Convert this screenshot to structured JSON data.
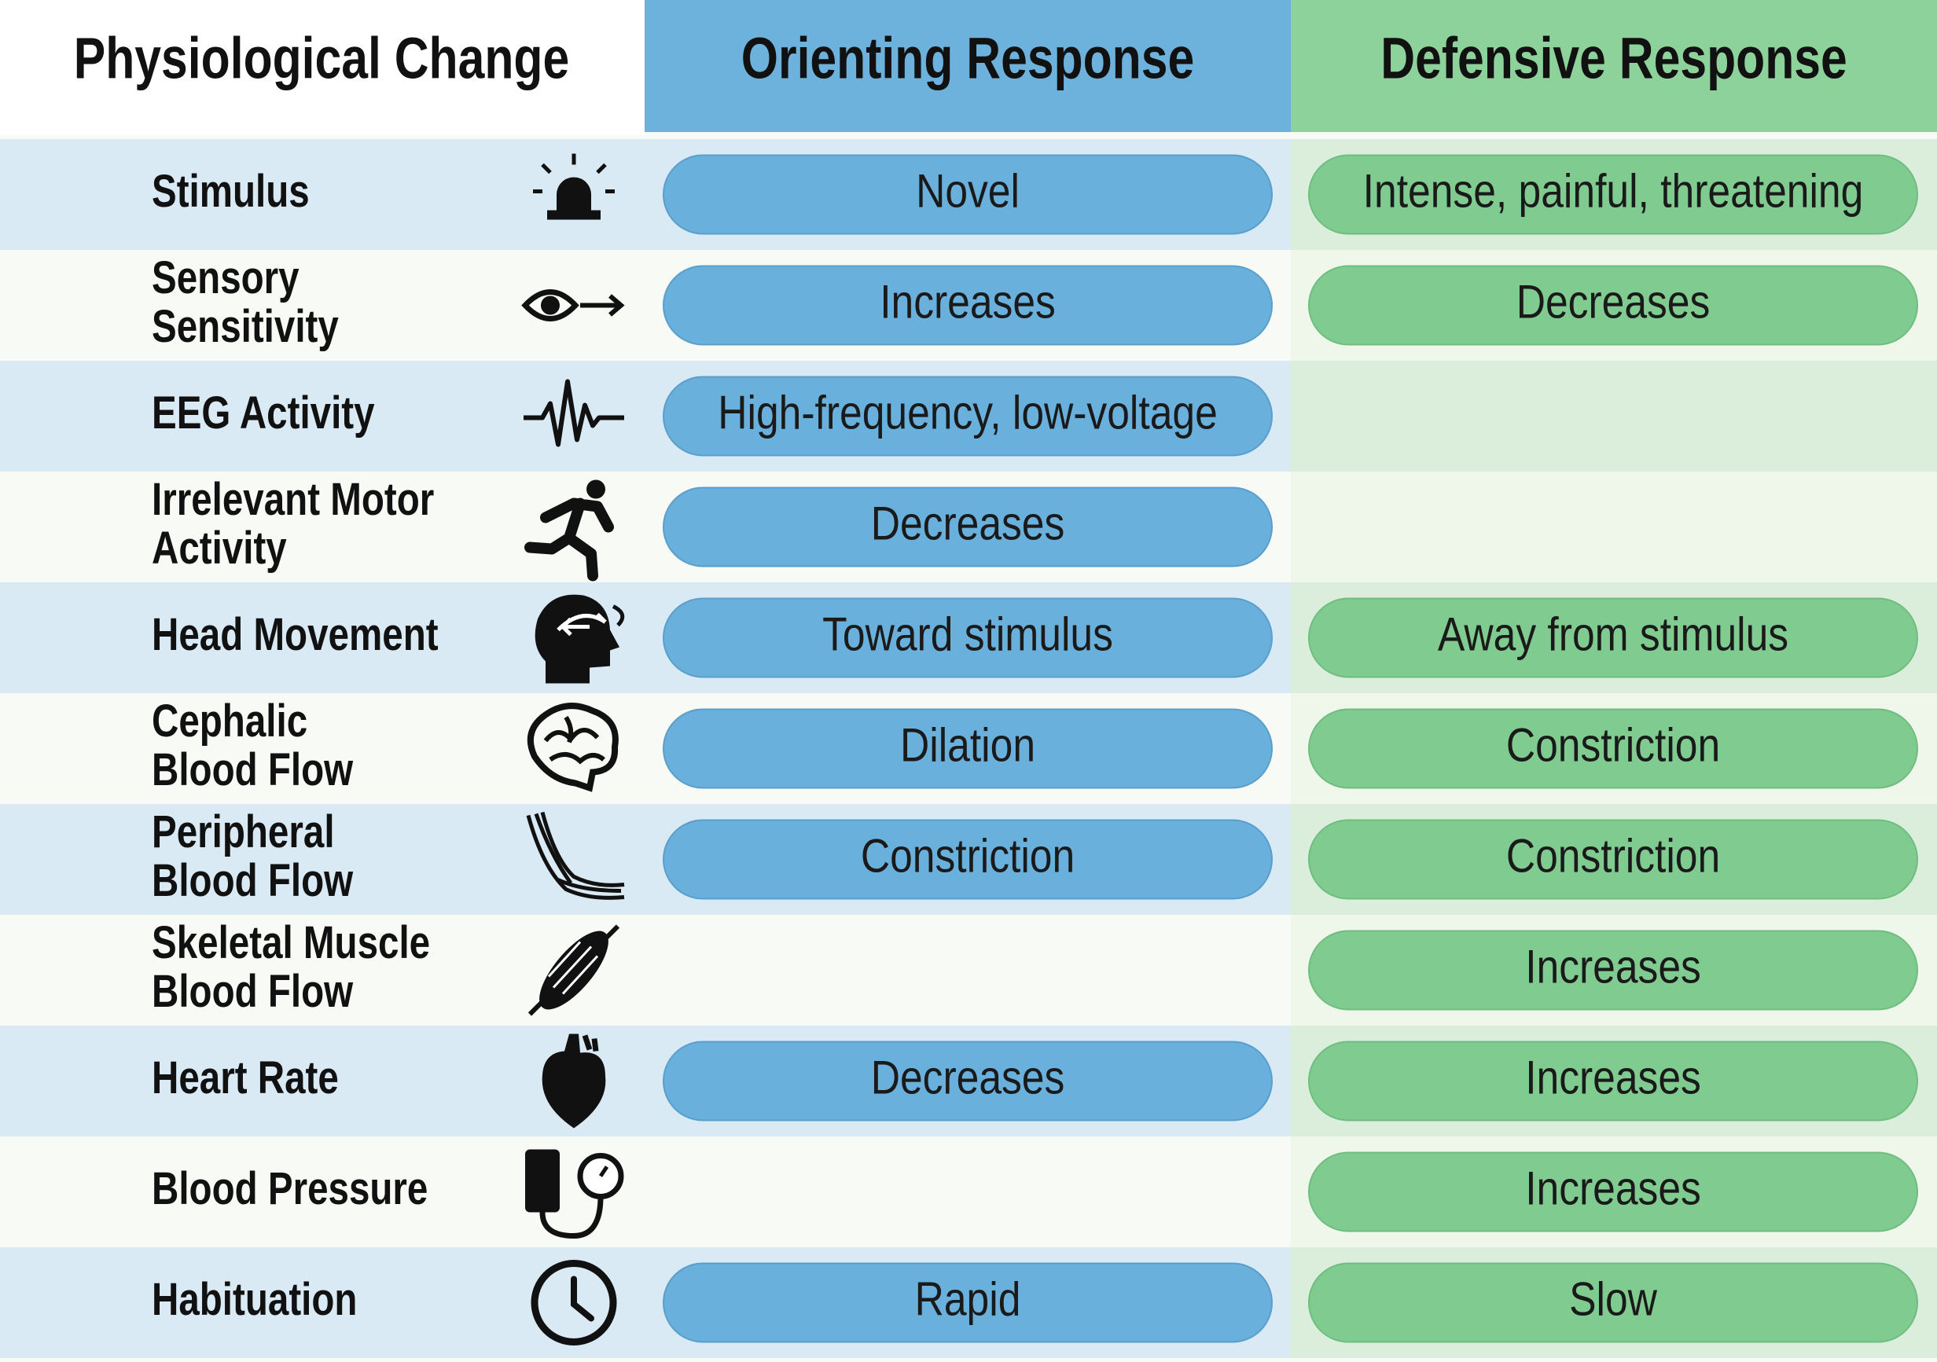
{
  "header": {
    "columns": [
      "Physiological Change",
      "Orienting Response",
      "Defensive Response"
    ]
  },
  "rows": [
    {
      "label": [
        "Stimulus"
      ],
      "orienting": "Novel",
      "defensive": "Intense, painful, threatening"
    },
    {
      "label": [
        "Sensory",
        "Sensitivity"
      ],
      "orienting": "Increases",
      "defensive": "Decreases"
    },
    {
      "label": [
        "EEG Activity"
      ],
      "orienting": "High-frequency, low-voltage",
      "defensive": null
    },
    {
      "label": [
        "Irrelevant Motor",
        "Activity"
      ],
      "orienting": "Decreases",
      "defensive": null
    },
    {
      "label": [
        "Head Movement"
      ],
      "orienting": "Toward stimulus",
      "defensive": "Away from stimulus"
    },
    {
      "label": [
        "Cephalic",
        "Blood Flow"
      ],
      "orienting": "Dilation",
      "defensive": "Constriction"
    },
    {
      "label": [
        "Peripheral",
        "Blood Flow"
      ],
      "orienting": "Constriction",
      "defensive": "Constriction"
    },
    {
      "label": [
        "Skeletal Muscle",
        "Blood Flow"
      ],
      "orienting": null,
      "defensive": "Increases"
    },
    {
      "label": [
        "Heart Rate"
      ],
      "orienting": "Decreases",
      "defensive": "Increases"
    },
    {
      "label": [
        "Blood Pressure"
      ],
      "orienting": null,
      "defensive": "Increases"
    },
    {
      "label": [
        "Habituation"
      ],
      "orienting": "Rapid",
      "defensive": "Slow"
    }
  ]
}
